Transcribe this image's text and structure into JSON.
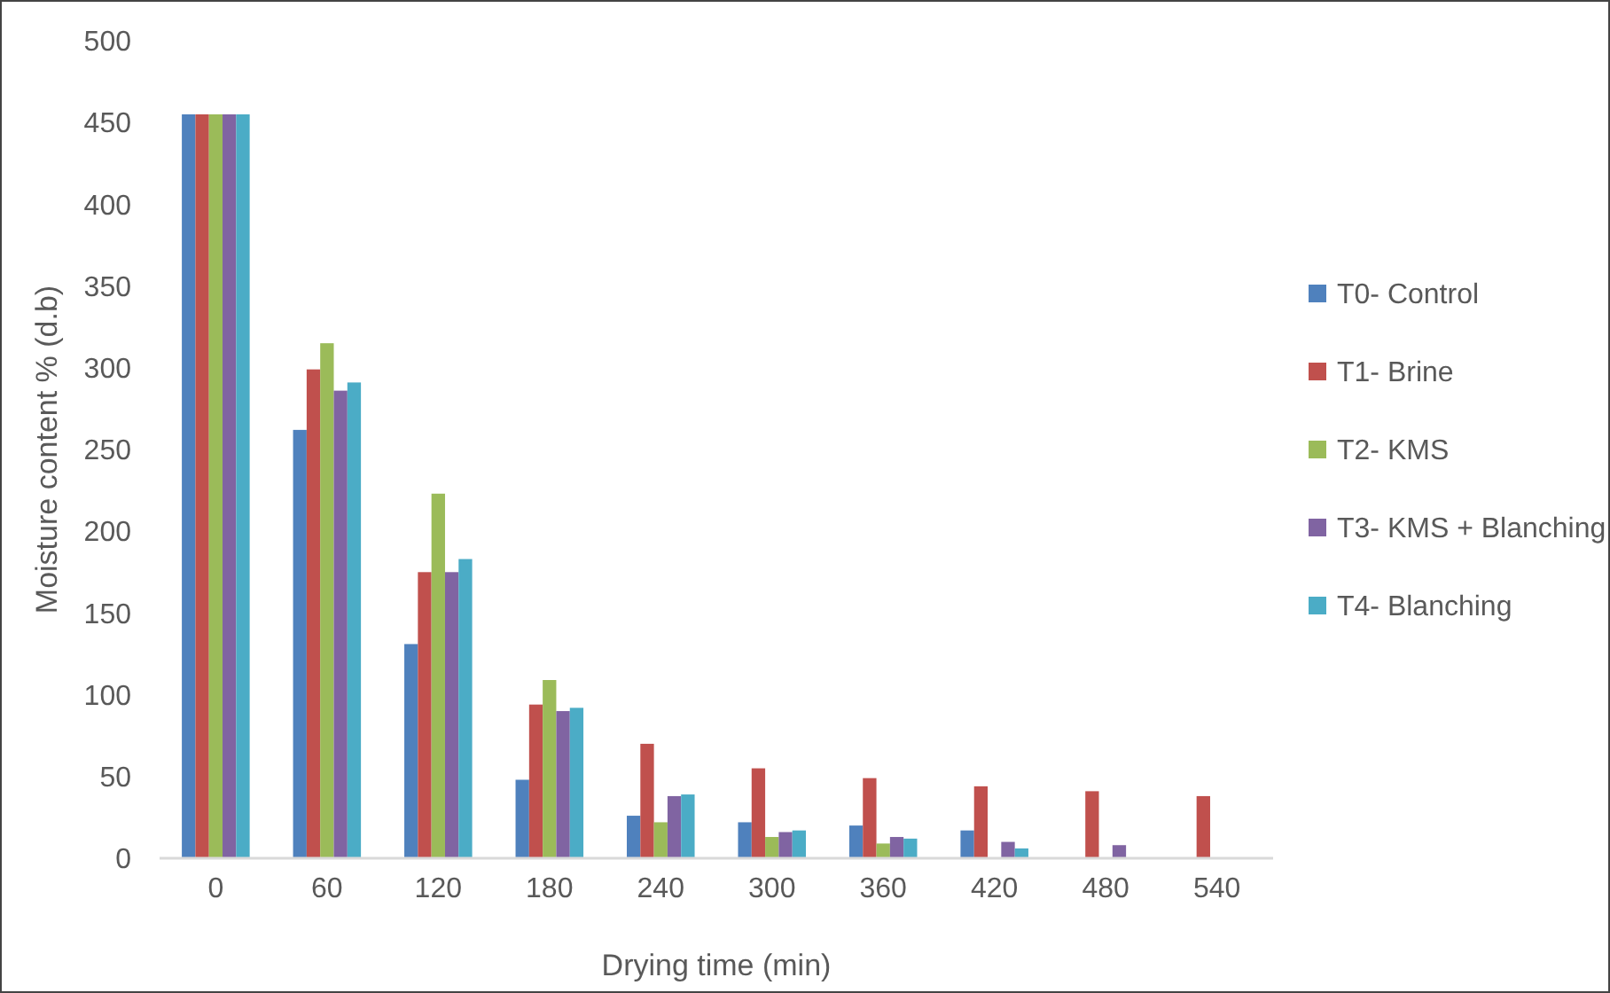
{
  "chart_data": {
    "type": "bar",
    "categories": [
      "0",
      "60",
      "120",
      "180",
      "240",
      "300",
      "360",
      "420",
      "480",
      "540"
    ],
    "series": [
      {
        "name": "T0- Control",
        "color": "#4f81bd",
        "values": [
          455,
          262,
          131,
          48,
          26,
          22,
          20,
          17,
          null,
          null
        ]
      },
      {
        "name": "T1- Brine",
        "color": "#c0504d",
        "values": [
          455,
          299,
          175,
          94,
          70,
          55,
          49,
          44,
          41,
          38
        ]
      },
      {
        "name": "T2- KMS",
        "color": "#9bbb59",
        "values": [
          455,
          315,
          223,
          109,
          22,
          13,
          9,
          null,
          null,
          null
        ]
      },
      {
        "name": "T3- KMS + Blanching",
        "color": "#8064a2",
        "values": [
          455,
          286,
          175,
          90,
          38,
          16,
          13,
          10,
          8,
          null
        ]
      },
      {
        "name": "T4- Blanching",
        "color": "#4bacc6",
        "values": [
          455,
          291,
          183,
          92,
          39,
          17,
          12,
          6,
          null,
          null
        ]
      }
    ],
    "xlabel": "Drying time (min)",
    "ylabel": "Moisture content % (d.b)",
    "ylim": [
      0,
      500
    ],
    "yticks": [
      0,
      50,
      100,
      150,
      200,
      250,
      300,
      350,
      400,
      450,
      500
    ],
    "legend": "right"
  }
}
